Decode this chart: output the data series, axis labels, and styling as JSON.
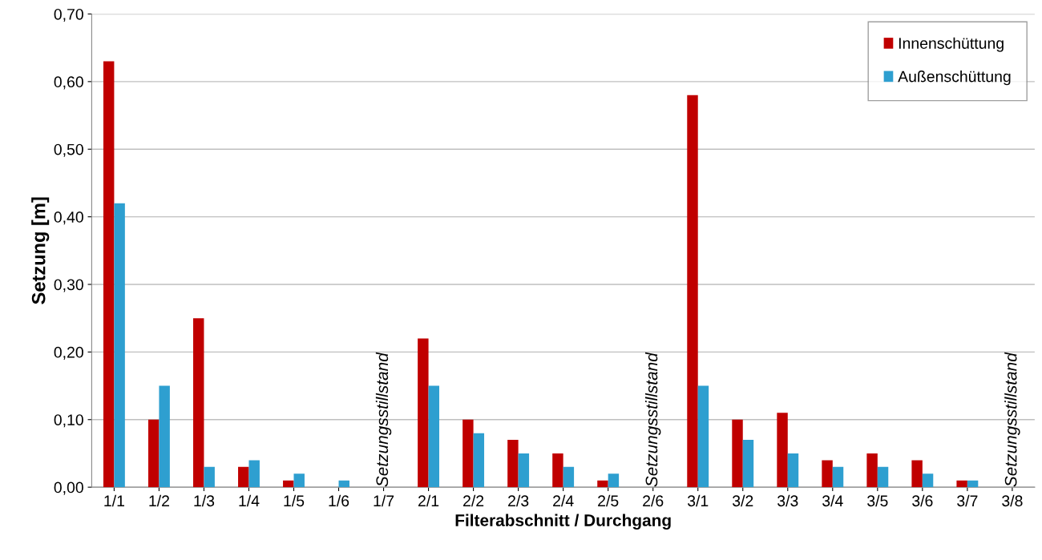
{
  "chart_data": {
    "type": "bar",
    "xlabel": "Filterabschnitt / Durchgang",
    "ylabel": "Setzung [m]",
    "categories": [
      "1/1",
      "1/2",
      "1/3",
      "1/4",
      "1/5",
      "1/6",
      "1/7",
      "2/1",
      "2/2",
      "2/3",
      "2/4",
      "2/5",
      "2/6",
      "3/1",
      "3/2",
      "3/3",
      "3/4",
      "3/5",
      "3/6",
      "3/7",
      "3/8"
    ],
    "series": [
      {
        "name": "Innenschüttung",
        "color": "#c00000",
        "values": [
          0.63,
          0.1,
          0.25,
          0.03,
          0.01,
          0,
          null,
          0.22,
          0.1,
          0.07,
          0.05,
          0.01,
          null,
          0.58,
          0.1,
          0.11,
          0.04,
          0.05,
          0.04,
          0.01,
          null
        ]
      },
      {
        "name": "Außenschüttung",
        "color": "#2e9fd0",
        "values": [
          0.42,
          0.15,
          0.03,
          0.04,
          0.02,
          0.01,
          null,
          0.15,
          0.08,
          0.05,
          0.03,
          0.02,
          null,
          0.15,
          0.07,
          0.05,
          0.03,
          0.03,
          0.02,
          0.01,
          null
        ]
      }
    ],
    "ylim": [
      0,
      0.7
    ],
    "yticks": [
      {
        "value": 0,
        "label": "0,00"
      },
      {
        "value": 0.1,
        "label": "0,10"
      },
      {
        "value": 0.2,
        "label": "0,20"
      },
      {
        "value": 0.3,
        "label": "0,30"
      },
      {
        "value": 0.4,
        "label": "0,40"
      },
      {
        "value": 0.5,
        "label": "0,50"
      },
      {
        "value": 0.6,
        "label": "0,60"
      },
      {
        "value": 0.7,
        "label": "0,70"
      }
    ],
    "grid": "y",
    "legend": "top right",
    "annotations": [
      "Setzungsstillstand",
      "Setzungsstillstand",
      "Setzungsstillstand"
    ]
  }
}
